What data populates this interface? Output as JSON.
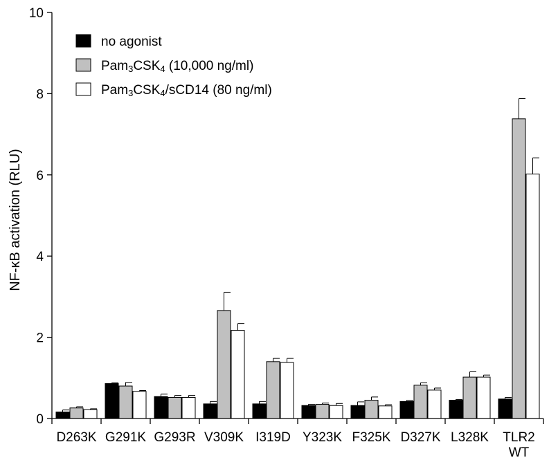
{
  "chart_data": {
    "type": "bar",
    "ylabel": "NF-κB activation (RLU)",
    "xlabel": "",
    "ylim": [
      0,
      10
    ],
    "yticks": [
      0,
      2,
      4,
      6,
      8,
      10
    ],
    "categories": [
      "D263K",
      "G291K",
      "G293R",
      "V309K",
      "I319D",
      "Y323K",
      "F325K",
      "D327K",
      "L328K",
      "TLR2 WT"
    ],
    "series": [
      {
        "name": "no agonist",
        "color": "#000000",
        "values": [
          0.16,
          0.86,
          0.54,
          0.36,
          0.36,
          0.32,
          0.32,
          0.42,
          0.45,
          0.48
        ],
        "errors": [
          0.05,
          0.02,
          0.06,
          0.06,
          0.06,
          0.03,
          0.09,
          0.03,
          0.02,
          0.04
        ]
      },
      {
        "name": "Pam3CSK4 (10,000 ng/ml)",
        "color": "#c0c0c0",
        "values": [
          0.26,
          0.8,
          0.52,
          2.66,
          1.4,
          0.35,
          0.45,
          0.82,
          1.02,
          7.38
        ],
        "errors": [
          0.03,
          0.09,
          0.05,
          0.45,
          0.08,
          0.03,
          0.08,
          0.06,
          0.13,
          0.5
        ]
      },
      {
        "name": "Pam3CSK4/sCD14 (80 ng/ml)",
        "color": "#ffffff",
        "values": [
          0.22,
          0.67,
          0.52,
          2.17,
          1.38,
          0.32,
          0.31,
          0.7,
          1.02,
          6.02
        ],
        "errors": [
          0.02,
          0.02,
          0.05,
          0.17,
          0.1,
          0.05,
          0.03,
          0.05,
          0.05,
          0.4
        ]
      }
    ],
    "legend": {
      "placement": "top-left",
      "items": [
        {
          "pre": "no agonist",
          "sub1": "",
          "mid": "",
          "sub2": "",
          "post": ""
        },
        {
          "pre": "Pam",
          "sub1": "3",
          "mid": "CSK",
          "sub2": "4",
          "post": " (10,000 ng/ml)"
        },
        {
          "pre": "Pam",
          "sub1": "3",
          "mid": "CSK",
          "sub2": "4",
          "post": "/sCD14 (80 ng/ml)"
        }
      ]
    },
    "grid": false
  }
}
